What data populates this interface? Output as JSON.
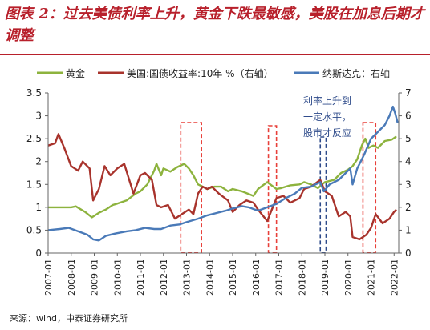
{
  "title": "图表 2：过去美债利率上升，黄金下跌最敏感，美股在加息后期才调整",
  "source": "来源：wind，中泰证券研究所",
  "chart_data": {
    "type": "line",
    "legend_position": "top",
    "grid": false,
    "x_start": 2007.0,
    "x_end": 2022.2,
    "x_ticks": [
      "2007-01",
      "2008-01",
      "2009-01",
      "2010-01",
      "2011-01",
      "2012-01",
      "2013-01",
      "2014-01",
      "2015-01",
      "2016-01",
      "2017-01",
      "2018-01",
      "2019-01",
      "2020-01",
      "2021-01",
      "2022-01"
    ],
    "y_left": {
      "ylim": [
        0,
        3.5
      ],
      "ticks": [
        "0",
        "0.5",
        "1",
        "1.5",
        "2",
        "2.5",
        "3",
        "3.5"
      ]
    },
    "y_right": {
      "ylim": [
        0,
        7
      ],
      "ticks": [
        "0",
        "1",
        "2",
        "3",
        "4",
        "5",
        "6",
        "7"
      ]
    },
    "series": [
      {
        "name": "黄金",
        "color": "#8db33e",
        "axis": "left",
        "points": [
          [
            2007.0,
            1.0
          ],
          [
            2007.5,
            1.0
          ],
          [
            2008.0,
            1.0
          ],
          [
            2008.2,
            1.02
          ],
          [
            2008.6,
            0.9
          ],
          [
            2008.9,
            0.78
          ],
          [
            2009.2,
            0.88
          ],
          [
            2009.5,
            0.95
          ],
          [
            2009.8,
            1.05
          ],
          [
            2010.0,
            1.08
          ],
          [
            2010.4,
            1.15
          ],
          [
            2010.8,
            1.3
          ],
          [
            2011.0,
            1.35
          ],
          [
            2011.3,
            1.5
          ],
          [
            2011.6,
            1.8
          ],
          [
            2011.7,
            1.95
          ],
          [
            2011.9,
            1.7
          ],
          [
            2012.0,
            1.85
          ],
          [
            2012.3,
            1.78
          ],
          [
            2012.6,
            1.88
          ],
          [
            2012.9,
            1.95
          ],
          [
            2013.1,
            1.85
          ],
          [
            2013.3,
            1.7
          ],
          [
            2013.5,
            1.5
          ],
          [
            2013.7,
            1.45
          ],
          [
            2013.9,
            1.4
          ],
          [
            2014.2,
            1.45
          ],
          [
            2014.5,
            1.45
          ],
          [
            2014.8,
            1.35
          ],
          [
            2015.0,
            1.4
          ],
          [
            2015.4,
            1.35
          ],
          [
            2015.9,
            1.25
          ],
          [
            2016.1,
            1.4
          ],
          [
            2016.5,
            1.55
          ],
          [
            2016.9,
            1.4
          ],
          [
            2017.1,
            1.42
          ],
          [
            2017.5,
            1.48
          ],
          [
            2017.9,
            1.5
          ],
          [
            2018.1,
            1.55
          ],
          [
            2018.4,
            1.5
          ],
          [
            2018.7,
            1.42
          ],
          [
            2019.0,
            1.55
          ],
          [
            2019.4,
            1.6
          ],
          [
            2019.7,
            1.75
          ],
          [
            2020.0,
            1.82
          ],
          [
            2020.2,
            1.9
          ],
          [
            2020.4,
            2.05
          ],
          [
            2020.6,
            2.35
          ],
          [
            2020.75,
            2.5
          ],
          [
            2020.9,
            2.3
          ],
          [
            2021.1,
            2.35
          ],
          [
            2021.3,
            2.3
          ],
          [
            2021.6,
            2.45
          ],
          [
            2021.9,
            2.48
          ],
          [
            2022.1,
            2.55
          ]
        ]
      },
      {
        "name": "美国:国债收益率:10年 %（右轴）",
        "color": "#a8332c",
        "axis": "right",
        "points": [
          [
            2007.0,
            4.7
          ],
          [
            2007.3,
            4.8
          ],
          [
            2007.45,
            5.2
          ],
          [
            2007.7,
            4.6
          ],
          [
            2008.0,
            3.8
          ],
          [
            2008.3,
            3.6
          ],
          [
            2008.5,
            4.0
          ],
          [
            2008.8,
            3.7
          ],
          [
            2008.95,
            2.3
          ],
          [
            2009.2,
            2.8
          ],
          [
            2009.45,
            3.8
          ],
          [
            2009.7,
            3.4
          ],
          [
            2010.0,
            3.7
          ],
          [
            2010.3,
            3.9
          ],
          [
            2010.7,
            2.6
          ],
          [
            2011.0,
            3.4
          ],
          [
            2011.2,
            3.5
          ],
          [
            2011.5,
            3.2
          ],
          [
            2011.7,
            2.1
          ],
          [
            2011.9,
            2.0
          ],
          [
            2012.2,
            2.1
          ],
          [
            2012.5,
            1.5
          ],
          [
            2012.8,
            1.7
          ],
          [
            2013.1,
            1.9
          ],
          [
            2013.3,
            1.7
          ],
          [
            2013.5,
            2.6
          ],
          [
            2013.7,
            2.9
          ],
          [
            2013.9,
            2.8
          ],
          [
            2014.1,
            2.9
          ],
          [
            2014.4,
            2.6
          ],
          [
            2014.8,
            2.3
          ],
          [
            2015.0,
            1.8
          ],
          [
            2015.3,
            2.1
          ],
          [
            2015.6,
            2.3
          ],
          [
            2015.9,
            2.2
          ],
          [
            2016.1,
            1.9
          ],
          [
            2016.5,
            1.4
          ],
          [
            2016.9,
            2.4
          ],
          [
            2017.2,
            2.5
          ],
          [
            2017.5,
            2.2
          ],
          [
            2017.9,
            2.4
          ],
          [
            2018.1,
            2.8
          ],
          [
            2018.4,
            2.9
          ],
          [
            2018.8,
            3.2
          ],
          [
            2019.0,
            2.7
          ],
          [
            2019.3,
            2.5
          ],
          [
            2019.6,
            1.6
          ],
          [
            2019.9,
            1.8
          ],
          [
            2020.1,
            1.6
          ],
          [
            2020.2,
            0.7
          ],
          [
            2020.5,
            0.6
          ],
          [
            2020.8,
            0.8
          ],
          [
            2021.0,
            1.1
          ],
          [
            2021.2,
            1.7
          ],
          [
            2021.5,
            1.3
          ],
          [
            2021.8,
            1.5
          ],
          [
            2022.0,
            1.8
          ],
          [
            2022.1,
            1.9
          ]
        ]
      },
      {
        "name": "纳斯达克：右轴",
        "color": "#4a7ab8",
        "axis": "right",
        "points": [
          [
            2007.0,
            1.0
          ],
          [
            2007.5,
            1.05
          ],
          [
            2007.9,
            1.1
          ],
          [
            2008.3,
            0.95
          ],
          [
            2008.7,
            0.8
          ],
          [
            2008.95,
            0.6
          ],
          [
            2009.2,
            0.55
          ],
          [
            2009.5,
            0.75
          ],
          [
            2009.9,
            0.85
          ],
          [
            2010.4,
            0.95
          ],
          [
            2010.8,
            1.0
          ],
          [
            2011.2,
            1.1
          ],
          [
            2011.6,
            1.05
          ],
          [
            2011.9,
            1.05
          ],
          [
            2012.3,
            1.2
          ],
          [
            2012.7,
            1.25
          ],
          [
            2013.0,
            1.35
          ],
          [
            2013.5,
            1.5
          ],
          [
            2013.9,
            1.65
          ],
          [
            2014.3,
            1.75
          ],
          [
            2014.7,
            1.85
          ],
          [
            2015.0,
            1.95
          ],
          [
            2015.4,
            2.05
          ],
          [
            2015.7,
            2.0
          ],
          [
            2016.1,
            1.85
          ],
          [
            2016.5,
            2.0
          ],
          [
            2016.9,
            2.15
          ],
          [
            2017.3,
            2.4
          ],
          [
            2017.7,
            2.6
          ],
          [
            2018.0,
            2.85
          ],
          [
            2018.4,
            2.9
          ],
          [
            2018.8,
            3.1
          ],
          [
            2018.95,
            2.7
          ],
          [
            2019.2,
            3.0
          ],
          [
            2019.6,
            3.2
          ],
          [
            2019.9,
            3.5
          ],
          [
            2020.1,
            3.7
          ],
          [
            2020.2,
            3.0
          ],
          [
            2020.4,
            3.7
          ],
          [
            2020.7,
            4.3
          ],
          [
            2021.0,
            5.0
          ],
          [
            2021.3,
            5.3
          ],
          [
            2021.6,
            5.6
          ],
          [
            2021.8,
            6.0
          ],
          [
            2021.95,
            6.4
          ],
          [
            2022.05,
            6.1
          ],
          [
            2022.15,
            5.7
          ]
        ]
      }
    ],
    "highlight_boxes": [
      {
        "color": "#e8403a",
        "from": 2012.75,
        "to": 2013.65
      },
      {
        "color": "#e8403a",
        "from": 2016.55,
        "to": 2016.9
      },
      {
        "color": "#e8403a",
        "from": 2020.65,
        "to": 2021.2
      },
      {
        "color": "#2d4a8a",
        "from": 2018.8,
        "to": 2019.05
      }
    ],
    "annotation": [
      "利率上升到",
      "一定水平，",
      "股市才反应"
    ]
  }
}
